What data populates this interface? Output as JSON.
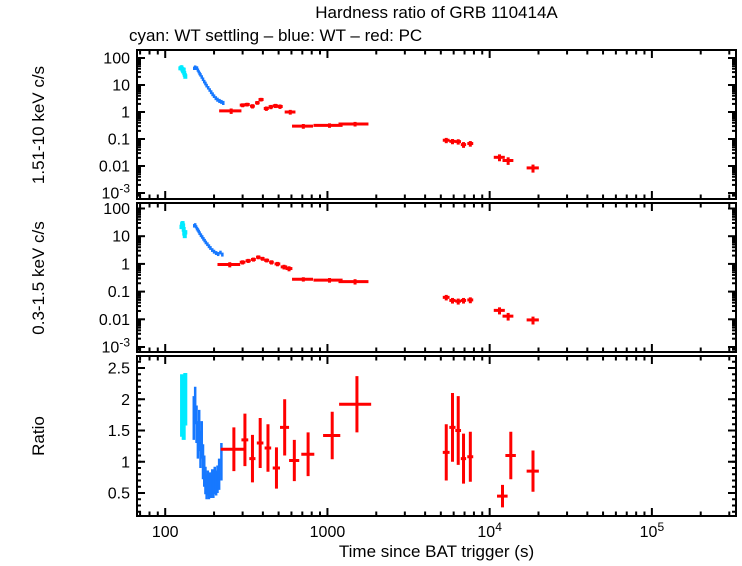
{
  "title": "Hardness ratio of GRB 110414A",
  "subtitle": "cyan: WT settling – blue: WT – red: PC",
  "colors": {
    "settling": "#00eaff",
    "wt": "#1778ff",
    "pc": "#ff0000",
    "frame": "#000000"
  },
  "x_axis": {
    "label": "Time since BAT trigger (s)",
    "scale": "log",
    "min": 67,
    "max": 330000,
    "major_ticks": [
      {
        "v": 100,
        "label": "100"
      },
      {
        "v": 1000,
        "label": "1000"
      },
      {
        "v": 10000,
        "label": "10^4"
      },
      {
        "v": 100000,
        "label": "10^5"
      }
    ]
  },
  "chart_data": [
    {
      "type": "scatter",
      "ylabel": "1.51-10 keV c/s",
      "yscale": "log",
      "ylim": [
        0.0006,
        198
      ],
      "yticks": [
        {
          "v": 100,
          "label": "100"
        },
        {
          "v": 10,
          "label": "10"
        },
        {
          "v": 1,
          "label": "1"
        },
        {
          "v": 0.1,
          "label": "0.1"
        },
        {
          "v": 0.01,
          "label": "0.01"
        },
        {
          "v": 0.001,
          "label": "10^-3"
        }
      ],
      "series": [
        {
          "name": "WT settling",
          "color": "#00eaff",
          "lw": 4,
          "points": [
            [
              124,
              42,
              2,
              7
            ],
            [
              126,
              46,
              2,
              7
            ],
            [
              127,
              40,
              2,
              6
            ],
            [
              128,
              36,
              2,
              6
            ],
            [
              129,
              32,
              2,
              5
            ],
            [
              130,
              38,
              2,
              6
            ],
            [
              131,
              28,
              2,
              5
            ],
            [
              132,
              24,
              2,
              4
            ],
            [
              133,
              21,
              2,
              4
            ]
          ]
        },
        {
          "name": "WT",
          "color": "#1778ff",
          "lw": 2.5,
          "points": [
            [
              151,
              42,
              2,
              6
            ],
            [
              153,
              47,
              2,
              6
            ],
            [
              155,
              41,
              2,
              5
            ],
            [
              157,
              44,
              2,
              5
            ],
            [
              159,
              36,
              2,
              5
            ],
            [
              161,
              31,
              2,
              4
            ],
            [
              163,
              27,
              2,
              4
            ],
            [
              165,
              24,
              2,
              3.5
            ],
            [
              168,
              20,
              2,
              3
            ],
            [
              171,
              16.5,
              2,
              2.5
            ],
            [
              174,
              13.5,
              2,
              2
            ],
            [
              177,
              11.5,
              2,
              1.8
            ],
            [
              180,
              9.6,
              2,
              1.5
            ],
            [
              184,
              8,
              2,
              1.2
            ],
            [
              188,
              6.6,
              2,
              1
            ],
            [
              192,
              5.5,
              2,
              0.9
            ],
            [
              196,
              4.6,
              2,
              0.75
            ],
            [
              200,
              3.9,
              2,
              0.6
            ],
            [
              205,
              3.3,
              2,
              0.55
            ],
            [
              210,
              2.9,
              2,
              0.5
            ],
            [
              216,
              2.6,
              3,
              0.45
            ],
            [
              222,
              2.4,
              3,
              0.4
            ],
            [
              228,
              2.2,
              3,
              0.38
            ]
          ]
        },
        {
          "name": "PC",
          "color": "#ff0000",
          "lw": 3,
          "points": [
            [
              255,
              1.1,
              40,
              0.25
            ],
            [
              300,
              1.8,
              12,
              0.3
            ],
            [
              320,
              1.9,
              12,
              0.3
            ],
            [
              345,
              1.65,
              12,
              0.3
            ],
            [
              370,
              2.2,
              12,
              0.35
            ],
            [
              390,
              2.9,
              14,
              0.45
            ],
            [
              420,
              1.35,
              15,
              0.25
            ],
            [
              448,
              1.55,
              15,
              0.28
            ],
            [
              478,
              1.7,
              18,
              0.3
            ],
            [
              510,
              1.6,
              20,
              0.3
            ],
            [
              590,
              1.0,
              45,
              0.2
            ],
            [
              710,
              0.3,
              105,
              0.06
            ],
            [
              1030,
              0.32,
              210,
              0.06
            ],
            [
              1480,
              0.36,
              310,
              0.07
            ],
            [
              5400,
              0.09,
              260,
              0.02
            ],
            [
              5900,
              0.082,
              260,
              0.018
            ],
            [
              6400,
              0.08,
              260,
              0.018
            ],
            [
              6900,
              0.062,
              260,
              0.015
            ],
            [
              7600,
              0.068,
              320,
              0.016
            ],
            [
              11500,
              0.021,
              900,
              0.006
            ],
            [
              13000,
              0.016,
              1000,
              0.005
            ],
            [
              18500,
              0.0085,
              1600,
              0.0028
            ]
          ]
        }
      ]
    },
    {
      "type": "scatter",
      "ylabel": "0.3-1.5 keV c/s",
      "yscale": "log",
      "ylim": [
        0.00066,
        158
      ],
      "yticks": [
        {
          "v": 100,
          "label": "100"
        },
        {
          "v": 10,
          "label": "10"
        },
        {
          "v": 1,
          "label": "1"
        },
        {
          "v": 0.1,
          "label": "0.1"
        },
        {
          "v": 0.01,
          "label": "0.01"
        },
        {
          "v": 0.001,
          "label": "10^-3"
        }
      ],
      "series": [
        {
          "name": "WT settling",
          "color": "#00eaff",
          "lw": 4,
          "points": [
            [
              126,
              22,
              2,
              4
            ],
            [
              127,
              27,
              2,
              5
            ],
            [
              128,
              30,
              2,
              5
            ],
            [
              129,
              25,
              2,
              4
            ],
            [
              130,
              18,
              2,
              3.5
            ],
            [
              131,
              13,
              2,
              2.5
            ],
            [
              132,
              10.5,
              2,
              2
            ],
            [
              133,
              14,
              2,
              2.5
            ]
          ]
        },
        {
          "name": "WT",
          "color": "#1778ff",
          "lw": 2.5,
          "points": [
            [
              151,
              24,
              2,
              3.5
            ],
            [
              153,
              26,
              2,
              3.5
            ],
            [
              155,
              22,
              2,
              3
            ],
            [
              157,
              19,
              2,
              2.8
            ],
            [
              159,
              17,
              2,
              2.5
            ],
            [
              161,
              15,
              2,
              2.2
            ],
            [
              163,
              13,
              2,
              2
            ],
            [
              166,
              11,
              2,
              1.7
            ],
            [
              169,
              9.5,
              2,
              1.4
            ],
            [
              172,
              8.1,
              2,
              1.2
            ],
            [
              175,
              7,
              2,
              1
            ],
            [
              178,
              6,
              2,
              0.9
            ],
            [
              182,
              5.2,
              2,
              0.8
            ],
            [
              186,
              4.4,
              2,
              0.7
            ],
            [
              190,
              3.8,
              2,
              0.6
            ],
            [
              195,
              3.2,
              2,
              0.5
            ],
            [
              200,
              2.8,
              2,
              0.45
            ],
            [
              206,
              2.5,
              2,
              0.4
            ],
            [
              212,
              2.3,
              3,
              0.38
            ],
            [
              219,
              2.6,
              3,
              0.4
            ],
            [
              225,
              2.2,
              3,
              0.36
            ]
          ]
        },
        {
          "name": "PC",
          "color": "#ff0000",
          "lw": 3,
          "points": [
            [
              250,
              0.95,
              40,
              0.2
            ],
            [
              300,
              1.15,
              12,
              0.2
            ],
            [
              325,
              1.3,
              12,
              0.22
            ],
            [
              350,
              1.45,
              12,
              0.24
            ],
            [
              375,
              1.75,
              12,
              0.28
            ],
            [
              398,
              1.55,
              12,
              0.25
            ],
            [
              422,
              1.35,
              15,
              0.22
            ],
            [
              452,
              1.15,
              15,
              0.2
            ],
            [
              492,
              1.0,
              20,
              0.18
            ],
            [
              540,
              0.78,
              25,
              0.15
            ],
            [
              580,
              0.68,
              28,
              0.14
            ],
            [
              710,
              0.28,
              105,
              0.05
            ],
            [
              1030,
              0.26,
              210,
              0.05
            ],
            [
              1480,
              0.23,
              310,
              0.05
            ],
            [
              5400,
              0.062,
              260,
              0.014
            ],
            [
              5900,
              0.048,
              260,
              0.011
            ],
            [
              6400,
              0.045,
              260,
              0.011
            ],
            [
              6900,
              0.048,
              260,
              0.011
            ],
            [
              7600,
              0.05,
              320,
              0.012
            ],
            [
              11500,
              0.021,
              900,
              0.006
            ],
            [
              13000,
              0.013,
              1000,
              0.004
            ],
            [
              18500,
              0.0095,
              1600,
              0.003
            ]
          ]
        }
      ]
    },
    {
      "type": "scatter",
      "ylabel": "Ratio",
      "yscale": "linear",
      "ylim": [
        0.132,
        2.692
      ],
      "yticks": [
        {
          "v": 2.5,
          "label": "2.5"
        },
        {
          "v": 2,
          "label": "2"
        },
        {
          "v": 1.5,
          "label": "1.5"
        },
        {
          "v": 1,
          "label": "1"
        },
        {
          "v": 0.5,
          "label": "0.5"
        }
      ],
      "series": [
        {
          "name": "WT settling",
          "color": "#00eaff",
          "lw": 4,
          "points": [
            [
              127,
              1.9,
              2,
              0.5
            ],
            [
              130,
              1.8,
              2,
              0.45
            ],
            [
              133,
              2.0,
              2,
              0.42
            ]
          ]
        },
        {
          "name": "WT",
          "color": "#1778ff",
          "lw": 2.5,
          "points": [
            [
              150,
              1.7,
              2,
              0.35
            ],
            [
              153,
              1.9,
              2,
              0.3
            ],
            [
              156,
              1.6,
              2,
              0.3
            ],
            [
              159,
              1.35,
              2,
              0.3
            ],
            [
              162,
              1.5,
              2,
              0.33
            ],
            [
              165,
              1.2,
              2,
              0.3
            ],
            [
              168,
              1.35,
              2,
              0.3
            ],
            [
              171,
              1.0,
              2,
              0.28
            ],
            [
              174,
              0.85,
              2,
              0.25
            ],
            [
              177,
              0.7,
              2,
              0.22
            ],
            [
              180,
              0.6,
              2,
              0.2
            ],
            [
              183,
              0.66,
              2,
              0.2
            ],
            [
              186,
              0.58,
              2,
              0.18
            ],
            [
              189,
              0.63,
              2,
              0.2
            ],
            [
              192,
              0.6,
              2,
              0.18
            ],
            [
              195,
              0.68,
              2,
              0.2
            ],
            [
              198,
              0.62,
              2,
              0.2
            ],
            [
              202,
              0.7,
              3,
              0.22
            ],
            [
              206,
              0.66,
              3,
              0.2
            ],
            [
              210,
              0.72,
              3,
              0.22
            ],
            [
              215,
              0.8,
              3,
              0.25
            ],
            [
              222,
              1.0,
              3,
              0.3
            ]
          ]
        },
        {
          "name": "PC",
          "color": "#ff0000",
          "lw": 3,
          "points": [
            [
              265,
              1.2,
              45,
              0.35
            ],
            [
              310,
              1.35,
              15,
              0.42
            ],
            [
              345,
              1.05,
              15,
              0.38
            ],
            [
              385,
              1.3,
              18,
              0.4
            ],
            [
              430,
              1.22,
              20,
              0.38
            ],
            [
              485,
              0.9,
              25,
              0.33
            ],
            [
              545,
              1.55,
              35,
              0.45
            ],
            [
              625,
              1.02,
              45,
              0.33
            ],
            [
              760,
              1.12,
              70,
              0.35
            ],
            [
              1070,
              1.42,
              130,
              0.38
            ],
            [
              1520,
              1.92,
              340,
              0.45
            ],
            [
              5400,
              1.15,
              260,
              0.45
            ],
            [
              5900,
              1.55,
              260,
              0.55
            ],
            [
              6400,
              1.5,
              260,
              0.55
            ],
            [
              6900,
              1.05,
              260,
              0.4
            ],
            [
              7600,
              1.08,
              320,
              0.4
            ],
            [
              12000,
              0.45,
              900,
              0.18
            ],
            [
              13500,
              1.1,
              1000,
              0.38
            ],
            [
              18500,
              0.85,
              1600,
              0.33
            ]
          ]
        }
      ]
    }
  ]
}
